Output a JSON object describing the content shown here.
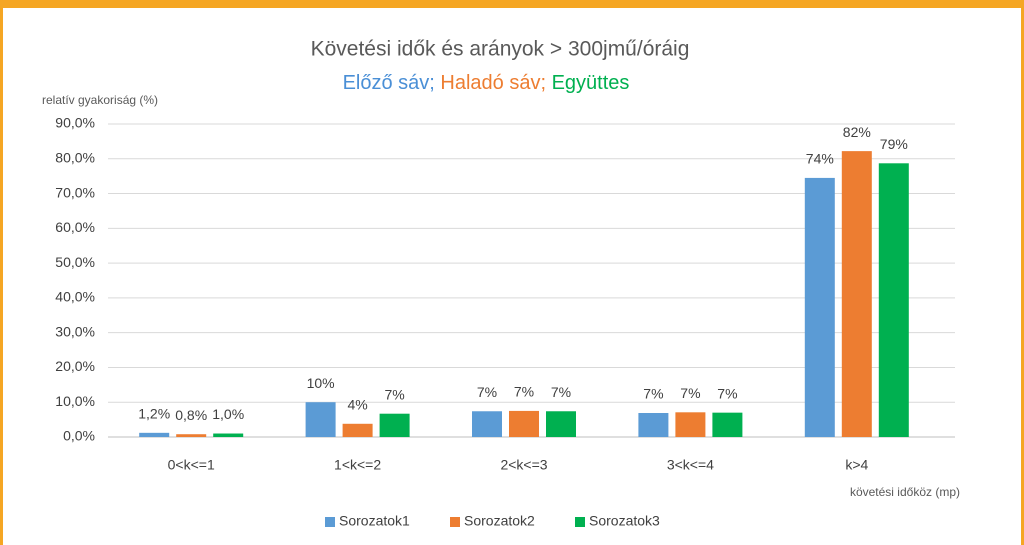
{
  "chart_data": {
    "type": "bar",
    "title": "Követési idők és arányok > 300jmű/óráig",
    "subtitle_parts": [
      {
        "text": "Előző sáv;",
        "color": "#4a8fd6"
      },
      {
        "text": "Haladó sáv;",
        "color": "#ed7d31"
      },
      {
        "text": "Együttes",
        "color": "#00b050"
      }
    ],
    "y_label": "relatív gyakoriság (%)",
    "x_label": "követési időköz (mp)",
    "categories": [
      "0<k<=1",
      "1<k<=2",
      "2<k<=3",
      "3<k<=4",
      "k>4"
    ],
    "series": [
      {
        "name": "Sorozatok1",
        "color": "#5b9bd5",
        "values": [
          1.2,
          10,
          7.4,
          6.9,
          74.5
        ],
        "value_labels": [
          "1,2%",
          "10%",
          "7%",
          "7%",
          "74%"
        ]
      },
      {
        "name": "Sorozatok2",
        "color": "#ed7d31",
        "values": [
          0.8,
          3.8,
          7.5,
          7.1,
          82.2
        ],
        "value_labels": [
          "0,8%",
          "4%",
          "7%",
          "7%",
          "82%"
        ]
      },
      {
        "name": "Sorozatok3",
        "color": "#00b050",
        "values": [
          1.0,
          6.7,
          7.4,
          7.0,
          78.7
        ],
        "value_labels": [
          "1,0%",
          "7%",
          "7%",
          "7%",
          "79%"
        ]
      }
    ],
    "ylim": [
      0,
      90
    ],
    "yticks": [
      {
        "value": 0,
        "label": "0,0%"
      },
      {
        "value": 10,
        "label": "10,0%"
      },
      {
        "value": 20,
        "label": "20,0%"
      },
      {
        "value": 30,
        "label": "30,0%"
      },
      {
        "value": 40,
        "label": "40,0%"
      },
      {
        "value": 50,
        "label": "50,0%"
      },
      {
        "value": 60,
        "label": "60,0%"
      },
      {
        "value": 70,
        "label": "70,0%"
      },
      {
        "value": 80,
        "label": "80,0%"
      },
      {
        "value": 90,
        "label": "90,0%"
      }
    ],
    "grid": true,
    "legend": "bottom"
  }
}
